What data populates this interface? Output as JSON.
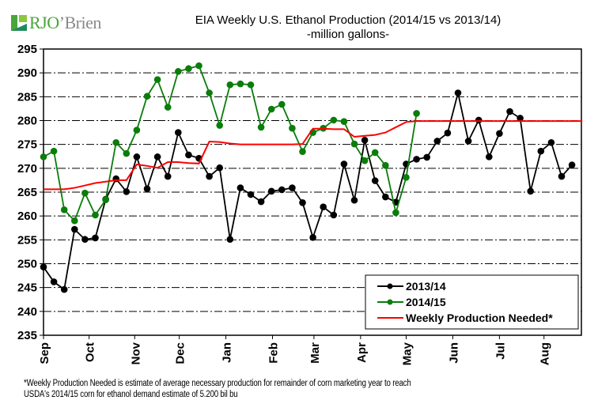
{
  "logo": {
    "brand_part1": "RJO",
    "brand_part2": "’Brien"
  },
  "chart_data": {
    "type": "line",
    "title": "EIA Weekly U.S. Ethanol Production (2014/15 vs 2013/14)",
    "subtitle": "-million  gallons-",
    "xlabel": "",
    "ylabel": "",
    "ylim": [
      235,
      295
    ],
    "yticks": [
      295,
      290,
      285,
      280,
      275,
      270,
      265,
      260,
      255,
      250,
      245,
      240,
      235
    ],
    "ytick_labels": [
      "295",
      "290",
      "285",
      "280",
      "275",
      "270",
      "265",
      "260",
      "255",
      "250",
      "245",
      "240",
      "235"
    ],
    "grid": true,
    "grid_style": "dash-dot horizontal",
    "x_unit": "week of marketing year (Sep start)",
    "xlim": [
      0,
      52
    ],
    "month_ticks": [
      {
        "label": "Sep",
        "week": 0
      },
      {
        "label": "Oct",
        "week": 4.4
      },
      {
        "label": "Nov",
        "week": 8.8
      },
      {
        "label": "Dec",
        "week": 13.1
      },
      {
        "label": "Jan",
        "week": 17.6
      },
      {
        "label": "Feb",
        "week": 22.1
      },
      {
        "label": "Mar",
        "week": 26.1
      },
      {
        "label": "Apr",
        "week": 30.6
      },
      {
        "label": "May",
        "week": 35.0
      },
      {
        "label": "Jun",
        "week": 39.5
      },
      {
        "label": "Jul",
        "week": 44.0
      },
      {
        "label": "Aug",
        "week": 48.3
      }
    ],
    "legend_position": "bottom-right",
    "series": [
      {
        "name": "2013/14",
        "color": "#000000",
        "marker": "circle",
        "values": [
          249.3,
          246.2,
          244.6,
          257.2,
          255.1,
          255.4,
          263.5,
          267.8,
          265.1,
          272.4,
          265.7,
          272.4,
          268.3,
          277.5,
          272.8,
          272.1,
          268.3,
          270.1,
          255.1,
          265.9,
          264.5,
          263.0,
          265.2,
          265.5,
          265.9,
          262.8,
          255.5,
          261.9,
          260.2,
          270.9,
          263.3,
          275.9,
          267.4,
          264.0,
          262.9,
          270.9,
          271.9,
          272.3,
          275.7,
          277.4,
          285.8,
          275.7,
          280.1,
          272.4,
          277.3,
          281.9,
          280.5,
          265.2,
          273.6,
          275.4,
          268.3,
          270.7
        ]
      },
      {
        "name": "2014/15",
        "color": "#0a7d0a",
        "marker": "circle",
        "values": [
          272.4,
          273.6,
          261.3,
          259.0,
          264.8,
          260.2,
          263.4,
          275.4,
          273.1,
          278.0,
          285.1,
          288.6,
          282.8,
          290.3,
          290.9,
          291.5,
          285.8,
          279.0,
          287.5,
          287.7,
          287.5,
          278.6,
          282.4,
          283.4,
          278.4,
          273.5,
          277.5,
          278.4,
          280.1,
          279.8,
          275.1,
          271.6,
          273.3,
          270.6,
          260.7,
          268.1,
          281.5
        ]
      },
      {
        "name": "Weekly Production Needed*",
        "color": "#ff0000",
        "marker": "none",
        "values": [
          265.6,
          265.6,
          265.6,
          265.9,
          266.4,
          266.9,
          267.2,
          267.5,
          267.5,
          270.8,
          270.5,
          270.1,
          271.3,
          271.3,
          271.1,
          271.0,
          275.6,
          275.5,
          275.2,
          275.0,
          275.0,
          275.0,
          275.0,
          275.0,
          275.0,
          275.1,
          278.3,
          278.3,
          278.2,
          278.2,
          276.6,
          276.8,
          277.0,
          277.5,
          278.6,
          279.7,
          279.9,
          279.9,
          279.9,
          279.9,
          279.9,
          279.9,
          279.9,
          279.9,
          279.9,
          279.9,
          279.9,
          279.9,
          279.9,
          279.9,
          279.9,
          279.9,
          279.9
        ]
      }
    ],
    "legend": [
      "2013/14",
      "2014/15",
      "Weekly Production Needed*"
    ]
  },
  "footnote": {
    "line1": "*Weekly Production Needed is estimate of average necessary production for remainder of corn marketing year to reach",
    "line2": "USDA's  2014/15 corn for ethanol demand estimate of 5.200 bil bu"
  }
}
